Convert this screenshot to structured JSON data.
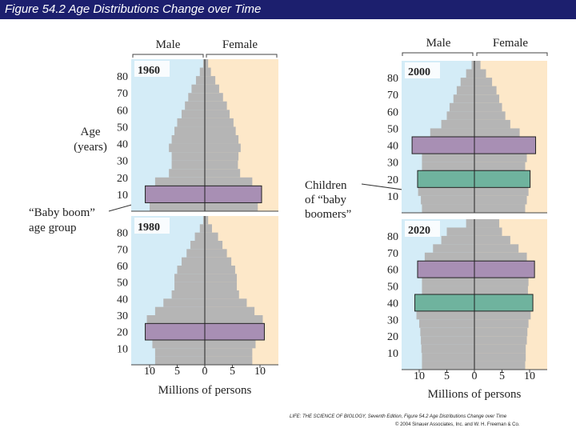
{
  "header": {
    "title": "Figure 54.2  Age Distributions Change over Time"
  },
  "labels": {
    "male": "Male",
    "female": "Female",
    "age_line1": "Age",
    "age_line2": "(years)",
    "baby_boom_line1": "“Baby boom”",
    "baby_boom_line2": "age group",
    "children_line1": "Children",
    "children_line2": "of “baby",
    "children_line3": "boomers”",
    "xlabel": "Millions of persons"
  },
  "credit": {
    "line1": "LIFE: THE SCIENCE OF BIOLOGY, Seventh Edition, Figure 54.2 Age Distributions Change over Time",
    "line2": "© 2004 Sinauer Associates, Inc. and W. H. Freeman & Co."
  },
  "colors": {
    "title_bar": "#1c1f6e",
    "male_bg": "#d4ecf7",
    "female_bg": "#fde8c9",
    "bars": "#b5b5b5",
    "baby_boom": "#a88fb4",
    "children_of_baby_boomers": "#6fb39e"
  },
  "chart_data": [
    {
      "type": "population-pyramid",
      "year": "1960",
      "ages": [
        0,
        5,
        10,
        15,
        20,
        25,
        30,
        35,
        40,
        45,
        50,
        55,
        60,
        65,
        70,
        75,
        80,
        85
      ],
      "male": [
        10,
        10.5,
        9.5,
        9,
        6.5,
        6,
        6,
        6.5,
        6,
        5.5,
        5,
        4.2,
        3.6,
        3,
        2.4,
        1.6,
        0.9,
        0.3
      ],
      "female": [
        9.6,
        10,
        9.2,
        8.6,
        6.4,
        6,
        6.1,
        6.5,
        6.1,
        5.6,
        5.2,
        4.5,
        4,
        3.3,
        2.6,
        1.9,
        1.1,
        0.6
      ],
      "highlights": [
        {
          "group": "baby boom",
          "age_range": [
            5,
            15
          ]
        }
      ],
      "age_ticks": [
        10,
        20,
        30,
        40,
        50,
        60,
        70,
        80
      ],
      "x_ticks": [
        "10",
        "5",
        "0",
        "5",
        "10"
      ],
      "xlim": [
        -12,
        12
      ]
    },
    {
      "type": "population-pyramid",
      "year": "1980",
      "ages": [
        0,
        5,
        10,
        15,
        20,
        25,
        30,
        35,
        40,
        45,
        50,
        55,
        60,
        65,
        70,
        75,
        80,
        85
      ],
      "male": [
        9,
        9,
        9.5,
        10,
        10.5,
        10.5,
        9,
        7.5,
        6,
        5.5,
        5.5,
        5,
        4.2,
        3.3,
        2.6,
        1.8,
        0.9,
        0.3
      ],
      "female": [
        8.6,
        8.6,
        9.2,
        10,
        10.5,
        10.5,
        9,
        7.6,
        6.2,
        5.8,
        5.8,
        5.5,
        4.8,
        4,
        3.2,
        2.4,
        1.3,
        0.6
      ],
      "highlights": [
        {
          "group": "baby boom",
          "age_range": [
            15,
            25
          ]
        }
      ],
      "age_ticks": [
        10,
        20,
        30,
        40,
        50,
        60,
        70,
        80
      ],
      "x_ticks": [
        "10",
        "5",
        "0",
        "5",
        "10"
      ],
      "xlim": [
        -12,
        12
      ]
    },
    {
      "type": "population-pyramid",
      "year": "2000",
      "ages": [
        0,
        5,
        10,
        15,
        20,
        25,
        30,
        35,
        40,
        45,
        50,
        55,
        60,
        65,
        70,
        75,
        80,
        85
      ],
      "male": [
        9.5,
        9.7,
        10.2,
        10,
        10,
        9.5,
        9.5,
        11,
        11,
        8,
        6,
        5,
        4.5,
        3.8,
        3.2,
        2.5,
        1.5,
        0.5
      ],
      "female": [
        9.2,
        9.5,
        9.8,
        9.8,
        9.7,
        9.2,
        9.5,
        10.5,
        10.8,
        8.2,
        6.5,
        5.6,
        5,
        4.5,
        4,
        3.2,
        2.1,
        1.1
      ],
      "highlights": [
        {
          "group": "baby boom",
          "age_range": [
            35,
            45
          ]
        },
        {
          "group": "children of baby boomers",
          "age_range": [
            15,
            25
          ]
        }
      ],
      "age_ticks": [
        10,
        20,
        30,
        40,
        50,
        60,
        70,
        80
      ],
      "x_ticks": [
        "10",
        "5",
        "0",
        "5",
        "10"
      ],
      "xlim": [
        -12,
        12
      ]
    },
    {
      "type": "population-pyramid",
      "year": "2020",
      "ages": [
        0,
        5,
        10,
        15,
        20,
        25,
        30,
        35,
        40,
        45,
        50,
        55,
        60,
        65,
        70,
        75,
        80,
        85
      ],
      "male": [
        9.5,
        9.5,
        9.6,
        9.7,
        9.8,
        10,
        10.5,
        10.5,
        10,
        9.5,
        9.5,
        10,
        10,
        9,
        7.5,
        6,
        5,
        1.5
      ],
      "female": [
        9.2,
        9.3,
        9.3,
        9.5,
        9.6,
        9.8,
        10.2,
        10.3,
        10,
        9.7,
        9.8,
        10.3,
        10.6,
        9.5,
        8,
        6.5,
        5,
        4.5
      ],
      "highlights": [
        {
          "group": "baby boom",
          "age_range": [
            55,
            65
          ]
        },
        {
          "group": "children of baby boomers",
          "age_range": [
            35,
            45
          ]
        }
      ],
      "age_ticks": [
        10,
        20,
        30,
        40,
        50,
        60,
        70,
        80
      ],
      "x_ticks": [
        "10",
        "5",
        "0",
        "5",
        "10"
      ],
      "xlim": [
        -12,
        12
      ]
    }
  ]
}
